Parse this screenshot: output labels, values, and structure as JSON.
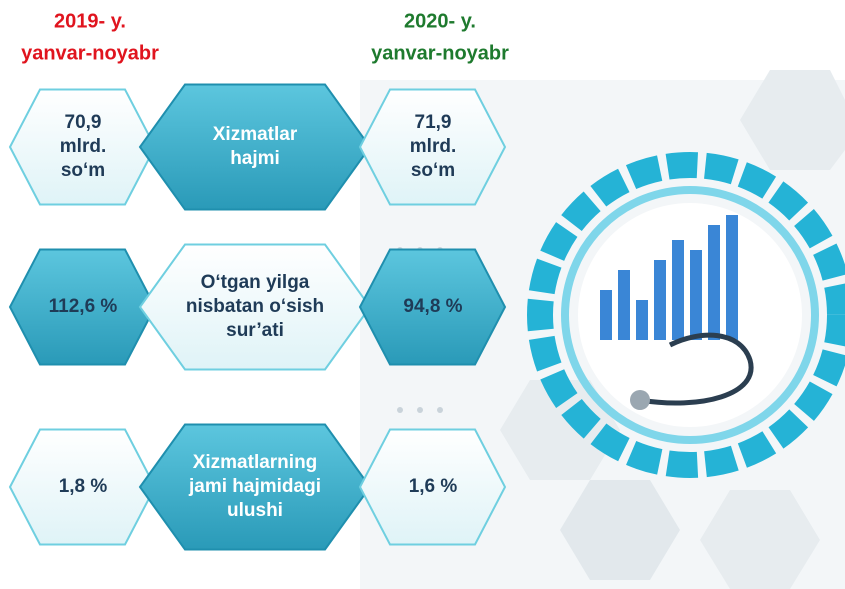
{
  "header": {
    "left": {
      "year": "2019- y.",
      "period": "yanvar-noyabr"
    },
    "right": {
      "year": "2020- y.",
      "period": "yanvar-noyabr"
    }
  },
  "rows": [
    {
      "left": [
        "70,9",
        "mlrd.",
        "so‘m"
      ],
      "label": [
        "Xizmatlar",
        "hajmi"
      ],
      "right": [
        "71,9",
        "mlrd.",
        "so‘m"
      ]
    },
    {
      "left": [
        "112,6 %"
      ],
      "label": [
        "O‘tgan yilga",
        "nisbatan o‘sish",
        "sur’ati"
      ],
      "right": [
        "94,8 %"
      ]
    },
    {
      "left": [
        "1,8 %"
      ],
      "label": [
        "Xizmatlarning",
        "jami hajmidagi",
        "ulushi"
      ],
      "right": [
        "1,6 %"
      ]
    }
  ]
}
